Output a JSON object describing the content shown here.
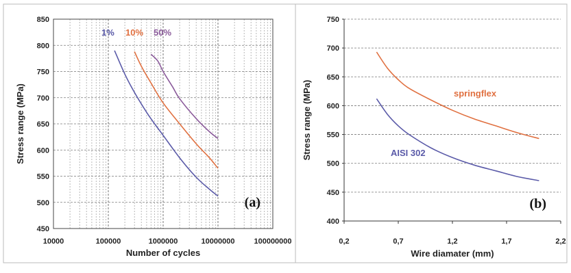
{
  "chart_data": [
    {
      "type": "line",
      "panel_label": "(a)",
      "xlabel": "Number of cycles",
      "ylabel": "Stress range (MPa)",
      "x_scale": "log",
      "xlim": [
        10000,
        100000000
      ],
      "ylim": [
        450,
        850
      ],
      "x_ticks": [
        "10000",
        "100000",
        "1000000",
        "10000000",
        "100000000"
      ],
      "y_ticks": [
        450,
        500,
        550,
        600,
        650,
        700,
        750,
        800,
        850
      ],
      "grid": "major-and-minor",
      "series": [
        {
          "name": "1%",
          "color": "#5a5aa8",
          "points": [
            [
              130000,
              790
            ],
            [
              200000,
              745
            ],
            [
              300000,
              710
            ],
            [
              500000,
              672
            ],
            [
              700000,
              650
            ],
            [
              1000000,
              628
            ],
            [
              2000000,
              585
            ],
            [
              4000000,
              548
            ],
            [
              7000000,
              525
            ],
            [
              10000000,
              512
            ]
          ]
        },
        {
          "name": "10%",
          "color": "#e07040",
          "points": [
            [
              300000,
              788
            ],
            [
              400000,
              760
            ],
            [
              600000,
              728
            ],
            [
              1000000,
              690
            ],
            [
              2000000,
              650
            ],
            [
              4000000,
              612
            ],
            [
              7000000,
              585
            ],
            [
              10000000,
              565
            ]
          ]
        },
        {
          "name": "50%",
          "color": "#8a5a9a",
          "points": [
            [
              600000,
              783
            ],
            [
              800000,
              770
            ],
            [
              1000000,
              750
            ],
            [
              1500000,
              720
            ],
            [
              2000000,
              698
            ],
            [
              4000000,
              660
            ],
            [
              7000000,
              635
            ],
            [
              10000000,
              622
            ]
          ]
        }
      ]
    },
    {
      "type": "line",
      "panel_label": "(b)",
      "xlabel": "Wire diamater (mm)",
      "ylabel": "Stress range (MPa)",
      "xlim": [
        0.2,
        2.2
      ],
      "ylim": [
        400,
        750
      ],
      "x_ticks": [
        "0,2",
        "0,7",
        "1,2",
        "1,7",
        "2,2"
      ],
      "y_ticks": [
        400,
        450,
        500,
        550,
        600,
        650,
        700,
        750
      ],
      "grid": "horizontal-dashed",
      "series": [
        {
          "name": "springflex",
          "color": "#e07040",
          "points": [
            [
              0.5,
              693
            ],
            [
              0.6,
              665
            ],
            [
              0.7,
              645
            ],
            [
              0.8,
              630
            ],
            [
              1.0,
              610
            ],
            [
              1.2,
              592
            ],
            [
              1.4,
              577
            ],
            [
              1.6,
              565
            ],
            [
              1.8,
              553
            ],
            [
              2.0,
              543
            ]
          ]
        },
        {
          "name": "AISI 302",
          "color": "#5a5aa8",
          "points": [
            [
              0.5,
              612
            ],
            [
              0.6,
              585
            ],
            [
              0.7,
              565
            ],
            [
              0.8,
              550
            ],
            [
              1.0,
              527
            ],
            [
              1.2,
              510
            ],
            [
              1.4,
              497
            ],
            [
              1.6,
              487
            ],
            [
              1.8,
              477
            ],
            [
              2.0,
              470
            ]
          ]
        }
      ]
    }
  ]
}
